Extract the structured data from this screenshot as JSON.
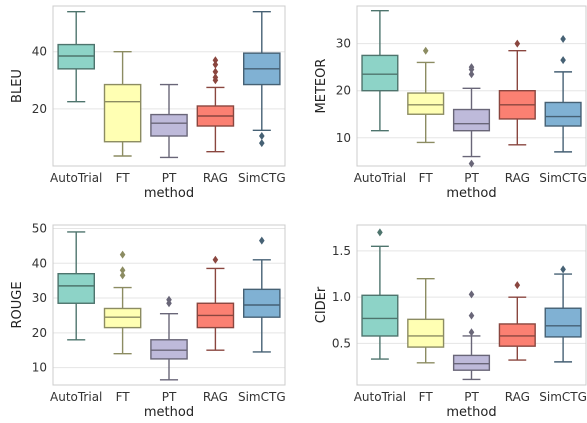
{
  "chart_data": [
    {
      "type": "box",
      "ylabel": "BLEU",
      "xlabel": "method",
      "ylim": [
        0,
        56
      ],
      "yticks": [
        20,
        40
      ],
      "categories": [
        "AutoTrial",
        "FT",
        "PT",
        "RAG",
        "SimCTG"
      ],
      "colors": [
        "#8dd3c7",
        "#ffffb3",
        "#bebada",
        "#fb8072",
        "#80b1d3"
      ],
      "boxes": [
        {
          "whislo": 22.5,
          "q1": 34,
          "med": 38.5,
          "q3": 42.5,
          "whishi": 54,
          "fliers": []
        },
        {
          "whislo": 3.5,
          "q1": 8.5,
          "med": 22.5,
          "q3": 28.5,
          "whishi": 40,
          "fliers": []
        },
        {
          "whislo": 3,
          "q1": 10.5,
          "med": 15,
          "q3": 18,
          "whishi": 28.5,
          "fliers": []
        },
        {
          "whislo": 5,
          "q1": 14,
          "med": 17.5,
          "q3": 21,
          "whishi": 27.5,
          "fliers": [
            30,
            31,
            33,
            35.5,
            37
          ]
        },
        {
          "whislo": 12.5,
          "q1": 28.5,
          "med": 34,
          "q3": 39.5,
          "whishi": 54,
          "fliers": [
            8,
            10.5
          ]
        }
      ]
    },
    {
      "type": "box",
      "ylabel": "METEOR",
      "xlabel": "method",
      "ylim": [
        4,
        38
      ],
      "yticks": [
        10,
        20,
        30
      ],
      "categories": [
        "AutoTrial",
        "FT",
        "PT",
        "RAG",
        "SimCTG"
      ],
      "colors": [
        "#8dd3c7",
        "#ffffb3",
        "#bebada",
        "#fb8072",
        "#80b1d3"
      ],
      "boxes": [
        {
          "whislo": 11.5,
          "q1": 20,
          "med": 23.5,
          "q3": 27.5,
          "whishi": 37,
          "fliers": []
        },
        {
          "whislo": 9,
          "q1": 15,
          "med": 17,
          "q3": 19.5,
          "whishi": 26,
          "fliers": [
            28.5
          ]
        },
        {
          "whislo": 6,
          "q1": 11.5,
          "med": 13,
          "q3": 16,
          "whishi": 20.5,
          "fliers": [
            4.5,
            23.5,
            24.5,
            25
          ]
        },
        {
          "whislo": 8.5,
          "q1": 14,
          "med": 17,
          "q3": 20,
          "whishi": 28.5,
          "fliers": [
            30
          ]
        },
        {
          "whislo": 7,
          "q1": 12.5,
          "med": 14.5,
          "q3": 17.5,
          "whishi": 24,
          "fliers": [
            26.5,
            31
          ]
        }
      ]
    },
    {
      "type": "box",
      "ylabel": "ROUGE",
      "xlabel": "method",
      "ylim": [
        5,
        51
      ],
      "yticks": [
        10,
        20,
        30,
        40,
        50
      ],
      "categories": [
        "AutoTrial",
        "FT",
        "PT",
        "RAG",
        "SimCTG"
      ],
      "colors": [
        "#8dd3c7",
        "#ffffb3",
        "#bebada",
        "#fb8072",
        "#80b1d3"
      ],
      "boxes": [
        {
          "whislo": 18,
          "q1": 28.5,
          "med": 33.5,
          "q3": 37,
          "whishi": 49,
          "fliers": []
        },
        {
          "whislo": 14,
          "q1": 21.5,
          "med": 24.5,
          "q3": 27,
          "whishi": 33,
          "fliers": [
            36.5,
            38,
            42.5
          ]
        },
        {
          "whislo": 6.5,
          "q1": 12.5,
          "med": 15,
          "q3": 18,
          "whishi": 25.5,
          "fliers": [
            28.5,
            29.5
          ]
        },
        {
          "whislo": 15,
          "q1": 21.5,
          "med": 25,
          "q3": 28.5,
          "whishi": 38.5,
          "fliers": [
            41
          ]
        },
        {
          "whislo": 14.5,
          "q1": 24.5,
          "med": 28,
          "q3": 32.5,
          "whishi": 41,
          "fliers": [
            46.5
          ]
        }
      ]
    },
    {
      "type": "box",
      "ylabel": "CIDEr",
      "xlabel": "method",
      "ylim": [
        0.05,
        1.78
      ],
      "yticks": [
        0.5,
        1.0,
        1.5
      ],
      "categories": [
        "AutoTrial",
        "FT",
        "PT",
        "RAG",
        "SimCTG"
      ],
      "colors": [
        "#8dd3c7",
        "#ffffb3",
        "#bebada",
        "#fb8072",
        "#80b1d3"
      ],
      "boxes": [
        {
          "whislo": 0.33,
          "q1": 0.58,
          "med": 0.77,
          "q3": 1.02,
          "whishi": 1.55,
          "fliers": [
            1.7
          ]
        },
        {
          "whislo": 0.29,
          "q1": 0.46,
          "med": 0.58,
          "q3": 0.76,
          "whishi": 1.2,
          "fliers": []
        },
        {
          "whislo": 0.11,
          "q1": 0.21,
          "med": 0.28,
          "q3": 0.37,
          "whishi": 0.58,
          "fliers": [
            0.62,
            0.8,
            1.03
          ]
        },
        {
          "whislo": 0.32,
          "q1": 0.47,
          "med": 0.58,
          "q3": 0.71,
          "whishi": 1.0,
          "fliers": [
            1.13
          ]
        },
        {
          "whislo": 0.3,
          "q1": 0.57,
          "med": 0.69,
          "q3": 0.88,
          "whishi": 1.25,
          "fliers": [
            1.3
          ]
        }
      ]
    }
  ]
}
